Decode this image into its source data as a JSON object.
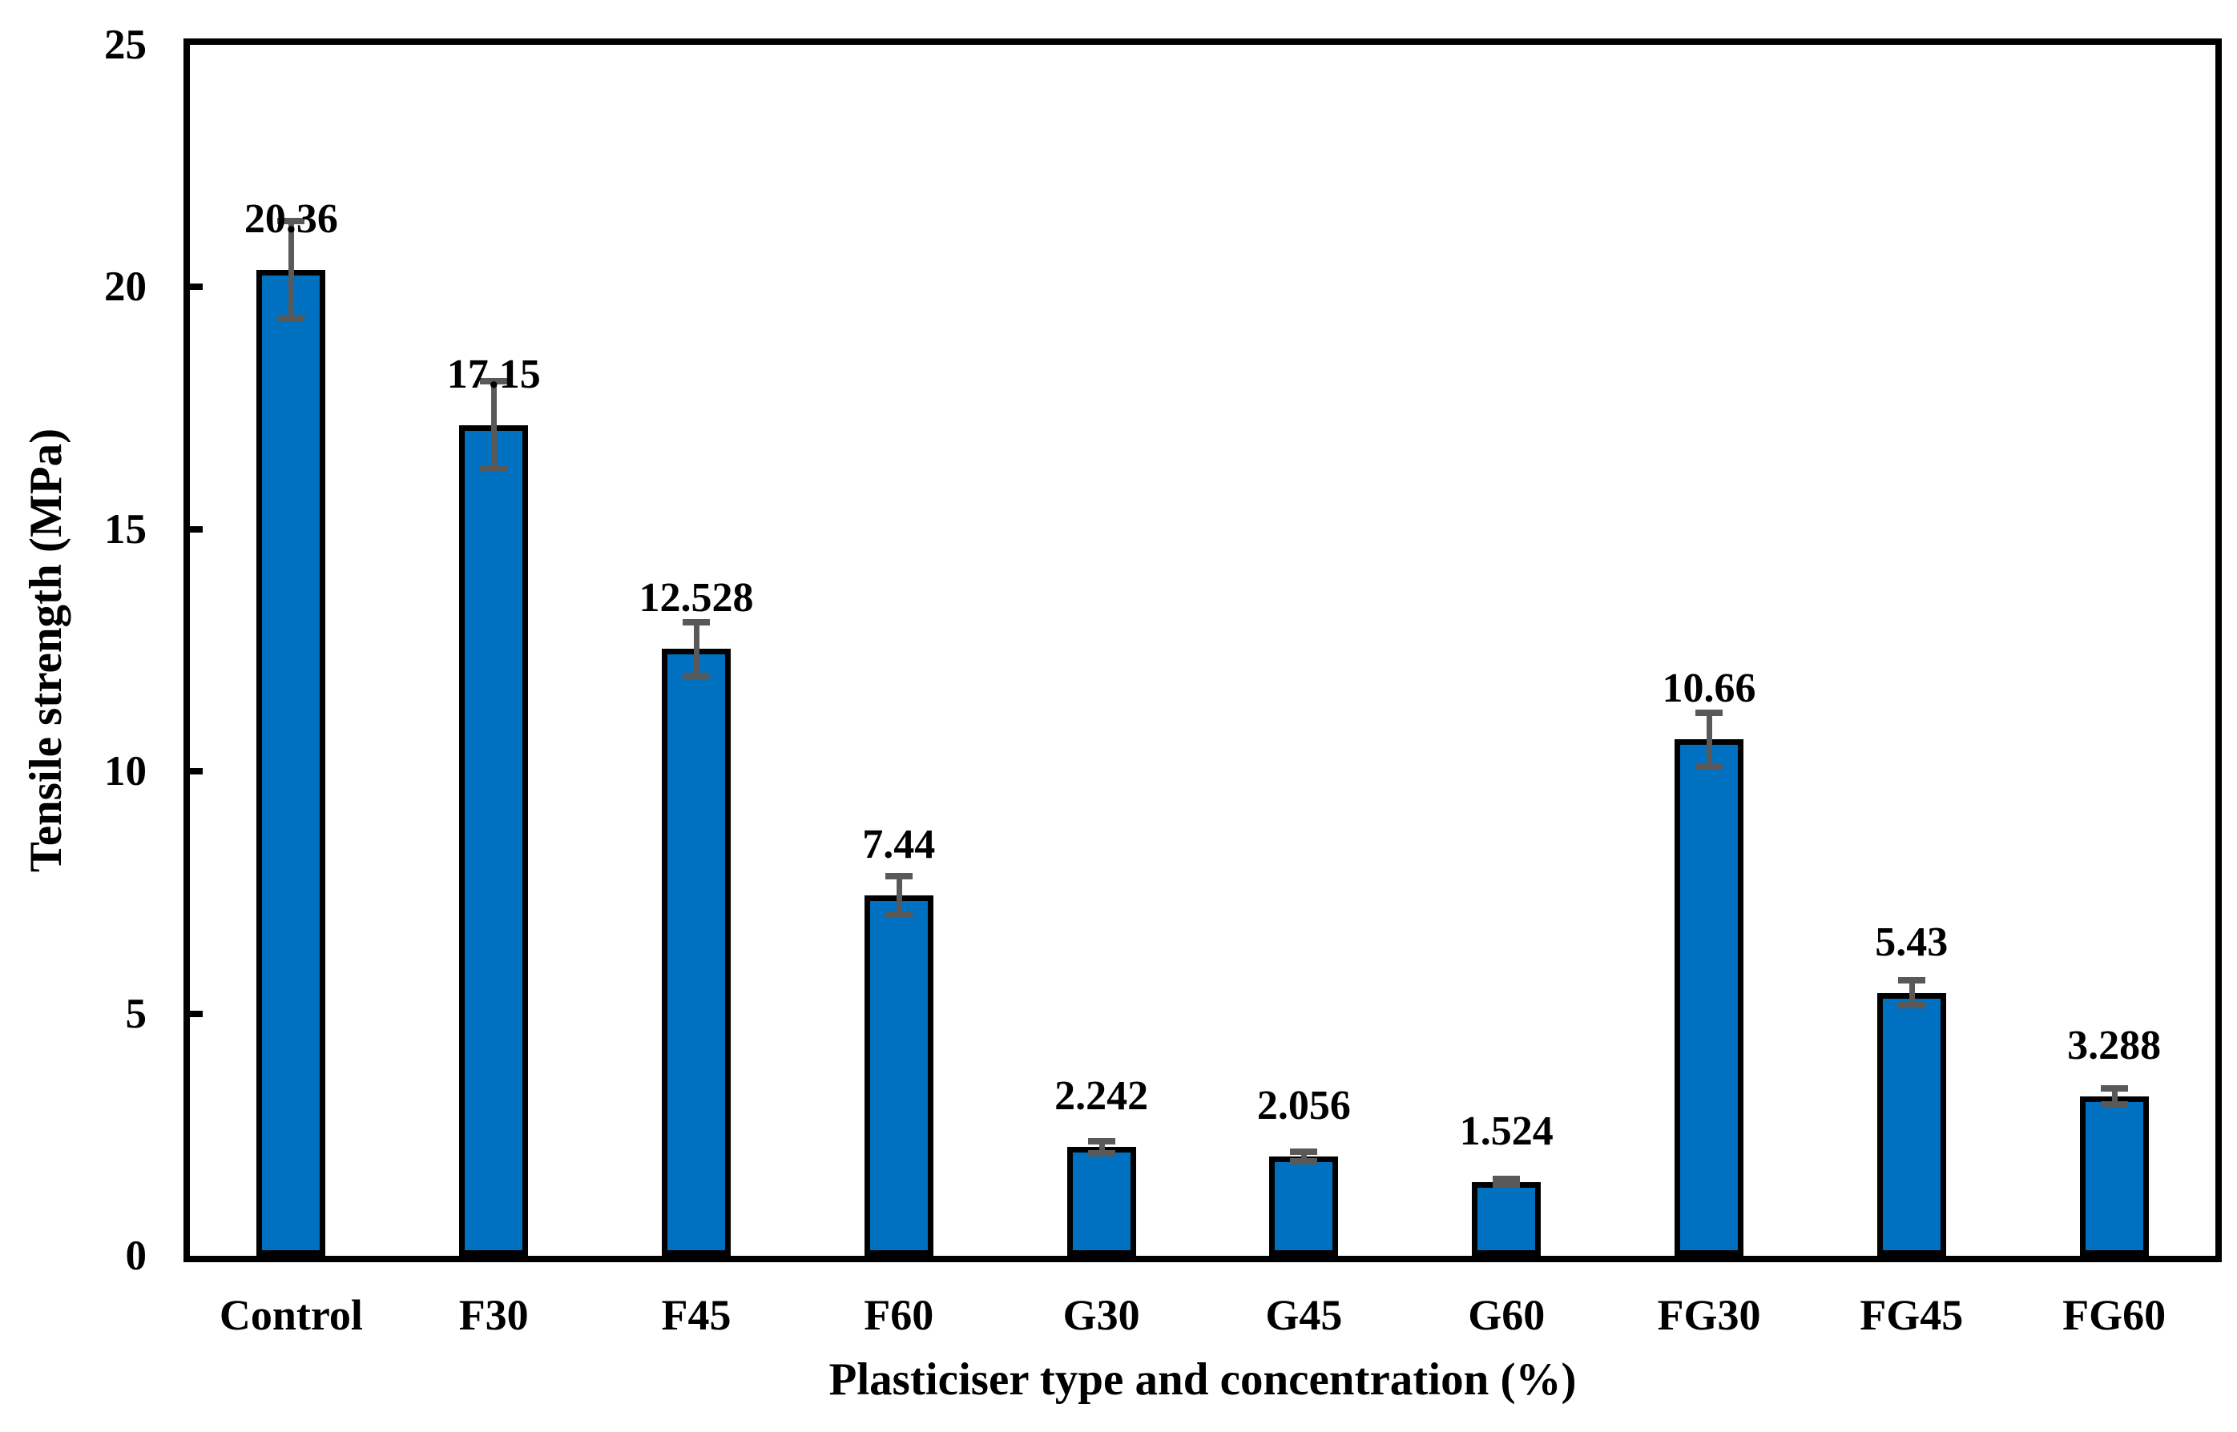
{
  "chart_data": {
    "type": "bar",
    "title": "",
    "xlabel": "Plasticiser type and concentration (%)",
    "ylabel": "Tensile strength (MPa)",
    "categories": [
      "Control",
      "F30",
      "F45",
      "F60",
      "G30",
      "G45",
      "G60",
      "FG30",
      "FG45",
      "FG60"
    ],
    "values": [
      20.36,
      17.15,
      12.528,
      7.44,
      2.242,
      2.056,
      1.524,
      10.66,
      5.43,
      3.288
    ],
    "value_labels": [
      "20.36",
      "17.15",
      "12.528",
      "7.44",
      "2.242",
      "2.056",
      "1.524",
      "10.66",
      "5.43",
      "3.288"
    ],
    "errors": [
      1.0,
      0.9,
      0.55,
      0.4,
      0.13,
      0.1,
      0.06,
      0.55,
      0.25,
      0.17
    ],
    "ylim": [
      0,
      25
    ],
    "yticks": [
      0,
      5,
      10,
      15,
      20,
      25
    ],
    "grid": false,
    "legend": false,
    "colors": {
      "bar_fill": "#0070C0",
      "bar_border": "#000000",
      "error_bar": "#595959",
      "axis": "#000000",
      "text": "#000000",
      "background": "#ffffff"
    }
  }
}
